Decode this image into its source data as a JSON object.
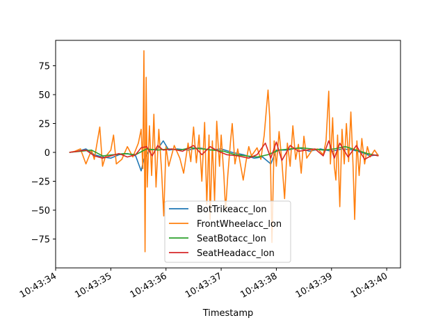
{
  "chart_data": {
    "type": "line",
    "title": "",
    "xlabel": "Timestamp",
    "ylabel": "",
    "x_ticks": [
      "10:43:34",
      "10:43:35",
      "10:43:36",
      "10:43:37",
      "10:43:38",
      "10:43:39",
      "10:43:40"
    ],
    "y_ticks": [
      -75,
      -50,
      -25,
      0,
      25,
      50,
      75
    ],
    "xlim": [
      "10:43:34.000",
      "10:43:40.250"
    ],
    "ylim": [
      -100,
      97
    ],
    "grid": false,
    "legend_position": "lower-center",
    "series": [
      {
        "name": "BotTrikeacc_lon",
        "color": "#1f77b4",
        "points": [
          [
            "10:43:34.250",
            0
          ],
          [
            "10:43:34.400",
            1
          ],
          [
            "10:43:34.550",
            3
          ],
          [
            "10:43:34.700",
            -2
          ],
          [
            "10:43:34.850",
            -4
          ],
          [
            "10:43:35.000",
            -5
          ],
          [
            "10:43:35.150",
            -2
          ],
          [
            "10:43:35.300",
            -1
          ],
          [
            "10:43:35.450",
            -3
          ],
          [
            "10:43:35.550",
            -16
          ],
          [
            "10:43:35.600",
            -6
          ],
          [
            "10:43:35.700",
            2
          ],
          [
            "10:43:35.850",
            3
          ],
          [
            "10:43:35.950",
            10
          ],
          [
            "10:43:36.050",
            2
          ],
          [
            "10:43:36.200",
            3
          ],
          [
            "10:43:36.400",
            2
          ],
          [
            "10:43:36.600",
            4
          ],
          [
            "10:43:36.800",
            2
          ],
          [
            "10:43:37.000",
            3
          ],
          [
            "10:43:37.200",
            0
          ],
          [
            "10:43:37.400",
            -2
          ],
          [
            "10:43:37.600",
            -5
          ],
          [
            "10:43:37.750",
            -4
          ],
          [
            "10:43:37.900",
            -10
          ],
          [
            "10:43:38.000",
            2
          ],
          [
            "10:43:38.200",
            2
          ],
          [
            "10:43:38.400",
            4
          ],
          [
            "10:43:38.600",
            1
          ],
          [
            "10:43:38.800",
            3
          ],
          [
            "10:43:39.000",
            1
          ],
          [
            "10:43:39.200",
            3
          ],
          [
            "10:43:39.400",
            2
          ],
          [
            "10:43:39.600",
            -1
          ],
          [
            "10:43:39.700",
            -3
          ],
          [
            "10:43:39.850",
            -2
          ]
        ]
      },
      {
        "name": "FrontWheelacc_lon",
        "color": "#ff7f0e",
        "points": [
          [
            "10:43:34.250",
            0
          ],
          [
            "10:43:34.350",
            1
          ],
          [
            "10:43:34.450",
            3
          ],
          [
            "10:43:34.550",
            -10
          ],
          [
            "10:43:34.650",
            2
          ],
          [
            "10:43:34.700",
            -6
          ],
          [
            "10:43:34.800",
            22
          ],
          [
            "10:43:34.850",
            -12
          ],
          [
            "10:43:34.900",
            -4
          ],
          [
            "10:43:35.000",
            2
          ],
          [
            "10:43:35.050",
            15
          ],
          [
            "10:43:35.100",
            -10
          ],
          [
            "10:43:35.200",
            -6
          ],
          [
            "10:43:35.300",
            5
          ],
          [
            "10:43:35.400",
            -4
          ],
          [
            "10:43:35.500",
            8
          ],
          [
            "10:43:35.550",
            20
          ],
          [
            "10:43:35.580",
            -14
          ],
          [
            "10:43:35.600",
            88
          ],
          [
            "10:43:35.620",
            -86
          ],
          [
            "10:43:35.640",
            65
          ],
          [
            "10:43:35.660",
            -30
          ],
          [
            "10:43:35.700",
            23
          ],
          [
            "10:43:35.740",
            -20
          ],
          [
            "10:43:35.780",
            33
          ],
          [
            "10:43:35.820",
            -30
          ],
          [
            "10:43:35.870",
            20
          ],
          [
            "10:43:35.920",
            -16
          ],
          [
            "10:43:35.960",
            -55
          ],
          [
            "10:43:36.000",
            5
          ],
          [
            "10:43:36.050",
            -12
          ],
          [
            "10:43:36.150",
            6
          ],
          [
            "10:43:36.250",
            -5
          ],
          [
            "10:43:36.320",
            -18
          ],
          [
            "10:43:36.400",
            8
          ],
          [
            "10:43:36.450",
            -8
          ],
          [
            "10:43:36.500",
            22
          ],
          [
            "10:43:36.550",
            -9
          ],
          [
            "10:43:36.600",
            15
          ],
          [
            "10:43:36.650",
            -25
          ],
          [
            "10:43:36.700",
            26
          ],
          [
            "10:43:36.740",
            -45
          ],
          [
            "10:43:36.780",
            15
          ],
          [
            "10:43:36.800",
            -58
          ],
          [
            "10:43:36.840",
            10
          ],
          [
            "10:43:36.880",
            -42
          ],
          [
            "10:43:36.920",
            27
          ],
          [
            "10:43:36.970",
            -12
          ],
          [
            "10:43:37.000",
            15
          ],
          [
            "10:43:37.050",
            -20
          ],
          [
            "10:43:37.080",
            -50
          ],
          [
            "10:43:37.120",
            -20
          ],
          [
            "10:43:37.170",
            10
          ],
          [
            "10:43:37.200",
            25
          ],
          [
            "10:43:37.250",
            -10
          ],
          [
            "10:43:37.300",
            3
          ],
          [
            "10:43:37.400",
            -24
          ],
          [
            "10:43:37.450",
            -8
          ],
          [
            "10:43:37.500",
            5
          ],
          [
            "10:43:37.550",
            -3
          ],
          [
            "10:43:37.650",
            4
          ],
          [
            "10:43:37.720",
            -6
          ],
          [
            "10:43:37.780",
            15
          ],
          [
            "10:43:37.820",
            38
          ],
          [
            "10:43:37.850",
            54
          ],
          [
            "10:43:37.880",
            30
          ],
          [
            "10:43:37.920",
            -78
          ],
          [
            "10:43:37.960",
            10
          ],
          [
            "10:43:38.000",
            -12
          ],
          [
            "10:43:38.050",
            18
          ],
          [
            "10:43:38.100",
            -8
          ],
          [
            "10:43:38.150",
            -40
          ],
          [
            "10:43:38.200",
            8
          ],
          [
            "10:43:38.250",
            -12
          ],
          [
            "10:43:38.300",
            23
          ],
          [
            "10:43:38.350",
            -6
          ],
          [
            "10:43:38.400",
            7
          ],
          [
            "10:43:38.450",
            -18
          ],
          [
            "10:43:38.500",
            14
          ],
          [
            "10:43:38.550",
            -5
          ],
          [
            "10:43:38.650",
            2
          ],
          [
            "10:43:38.750",
            3
          ],
          [
            "10:43:38.850",
            -2
          ],
          [
            "10:43:38.900",
            10
          ],
          [
            "10:43:38.950",
            53
          ],
          [
            "10:43:38.980",
            -10
          ],
          [
            "10:43:39.020",
            30
          ],
          [
            "10:43:39.050",
            -12
          ],
          [
            "10:43:39.080",
            -24
          ],
          [
            "10:43:39.110",
            15
          ],
          [
            "10:43:39.150",
            -47
          ],
          [
            "10:43:39.190",
            20
          ],
          [
            "10:43:39.230",
            -10
          ],
          [
            "10:43:39.270",
            25
          ],
          [
            "10:43:39.310",
            -8
          ],
          [
            "10:43:39.350",
            35
          ],
          [
            "10:43:39.390",
            -12
          ],
          [
            "10:43:39.420",
            -58
          ],
          [
            "10:43:39.460",
            10
          ],
          [
            "10:43:39.500",
            -20
          ],
          [
            "10:43:39.550",
            12
          ],
          [
            "10:43:39.600",
            -10
          ],
          [
            "10:43:39.650",
            5
          ],
          [
            "10:43:39.700",
            -4
          ],
          [
            "10:43:39.780",
            2
          ],
          [
            "10:43:39.850",
            -3
          ]
        ]
      },
      {
        "name": "SeatBotacc_lon",
        "color": "#2ca02c",
        "points": [
          [
            "10:43:34.250",
            0
          ],
          [
            "10:43:34.450",
            1
          ],
          [
            "10:43:34.650",
            2
          ],
          [
            "10:43:34.850",
            -3
          ],
          [
            "10:43:35.050",
            -2
          ],
          [
            "10:43:35.250",
            -1
          ],
          [
            "10:43:35.450",
            -2
          ],
          [
            "10:43:35.650",
            3
          ],
          [
            "10:43:35.850",
            2
          ],
          [
            "10:43:36.050",
            3
          ],
          [
            "10:43:36.250",
            2
          ],
          [
            "10:43:36.450",
            4
          ],
          [
            "10:43:36.650",
            3
          ],
          [
            "10:43:36.850",
            2
          ],
          [
            "10:43:37.050",
            1
          ],
          [
            "10:43:37.250",
            -2
          ],
          [
            "10:43:37.450",
            -3
          ],
          [
            "10:43:37.650",
            -4
          ],
          [
            "10:43:37.850",
            -2
          ],
          [
            "10:43:38.050",
            2
          ],
          [
            "10:43:38.250",
            3
          ],
          [
            "10:43:38.450",
            4
          ],
          [
            "10:43:38.650",
            3
          ],
          [
            "10:43:38.850",
            2
          ],
          [
            "10:43:39.050",
            3
          ],
          [
            "10:43:39.250",
            5
          ],
          [
            "10:43:39.450",
            2
          ],
          [
            "10:43:39.650",
            -1
          ],
          [
            "10:43:39.850",
            -3
          ]
        ]
      },
      {
        "name": "SeatHeadacc_lon",
        "color": "#d62728",
        "points": [
          [
            "10:43:34.250",
            0
          ],
          [
            "10:43:34.400",
            1
          ],
          [
            "10:43:34.550",
            2
          ],
          [
            "10:43:34.700",
            -3
          ],
          [
            "10:43:34.850",
            -5
          ],
          [
            "10:43:35.000",
            -3
          ],
          [
            "10:43:35.150",
            -1
          ],
          [
            "10:43:35.300",
            -4
          ],
          [
            "10:43:35.450",
            -2
          ],
          [
            "10:43:35.550",
            4
          ],
          [
            "10:43:35.650",
            5
          ],
          [
            "10:43:35.750",
            -3
          ],
          [
            "10:43:35.850",
            6
          ],
          [
            "10:43:35.950",
            2
          ],
          [
            "10:43:36.100",
            3
          ],
          [
            "10:43:36.300",
            1
          ],
          [
            "10:43:36.500",
            6
          ],
          [
            "10:43:36.650",
            -2
          ],
          [
            "10:43:36.800",
            5
          ],
          [
            "10:43:36.950",
            1
          ],
          [
            "10:43:37.100",
            -2
          ],
          [
            "10:43:37.300",
            -3
          ],
          [
            "10:43:37.500",
            -5
          ],
          [
            "10:43:37.650",
            -2
          ],
          [
            "10:43:37.800",
            8
          ],
          [
            "10:43:37.900",
            -5
          ],
          [
            "10:43:38.000",
            9
          ],
          [
            "10:43:38.100",
            -7
          ],
          [
            "10:43:38.250",
            6
          ],
          [
            "10:43:38.400",
            1
          ],
          [
            "10:43:38.550",
            2
          ],
          [
            "10:43:38.700",
            3
          ],
          [
            "10:43:38.850",
            -3
          ],
          [
            "10:43:38.950",
            10
          ],
          [
            "10:43:39.050",
            -5
          ],
          [
            "10:43:39.150",
            8
          ],
          [
            "10:43:39.300",
            -4
          ],
          [
            "10:43:39.450",
            6
          ],
          [
            "10:43:39.600",
            -6
          ],
          [
            "10:43:39.750",
            -2
          ],
          [
            "10:43:39.850",
            -3
          ]
        ]
      }
    ]
  }
}
